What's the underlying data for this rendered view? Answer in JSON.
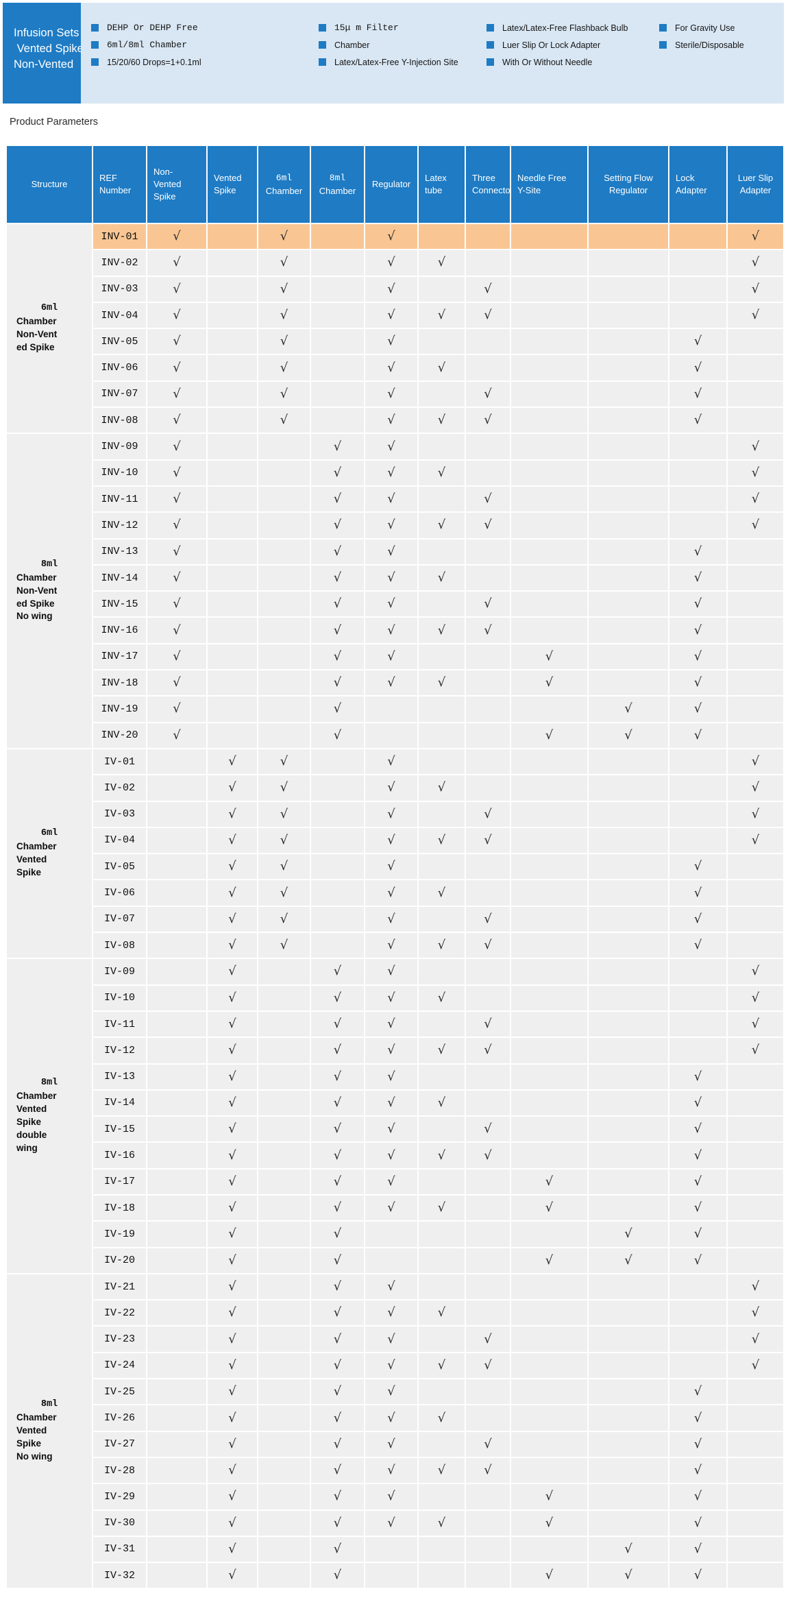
{
  "header": {
    "title_lines": [
      "Infusion Sets",
      " Vented Spike/",
      "Non-Vented"
    ],
    "bullet_columns": [
      {
        "items": [
          {
            "text": "DEHP Or DEHP Free",
            "mono": true
          },
          {
            "text": "6ml/8ml Chamber",
            "mono": true
          },
          {
            "text": "15/20/60 Drops=1+0.1ml",
            "mono": false
          }
        ]
      },
      {
        "items": [
          {
            "text": "15μ m Filter",
            "mono": true
          },
          {
            "text": "Chamber",
            "mono": false
          },
          {
            "text": "Latex/Latex-Free Y-Injection Site",
            "mono": false
          }
        ]
      },
      {
        "items": [
          {
            "text": "Latex/Latex-Free Flashback Bulb",
            "mono": false
          },
          {
            "text": "Luer Slip Or Lock Adapter",
            "mono": false
          },
          {
            "text": "With Or Without Needle",
            "mono": false
          }
        ]
      },
      {
        "items": [
          {
            "text": "For Gravity Use",
            "mono": false
          },
          {
            "text": "Sterile/Disposable",
            "mono": false
          }
        ]
      }
    ]
  },
  "section_title": "Product Parameters",
  "colors": {
    "primary_blue": "#1E7BC4",
    "panel_blue": "#D9E7F4",
    "row_gray": "#F0EFEF",
    "highlight_orange": "#F9C693"
  },
  "table": {
    "check_glyph": "√",
    "columns": [
      {
        "key": "structure",
        "label": "Structure"
      },
      {
        "key": "ref",
        "label": "REF\nNumber"
      },
      {
        "key": "nvs",
        "label": "Non-\nVented\nSpike"
      },
      {
        "key": "vs",
        "label": "Vented\nSpike"
      },
      {
        "key": "c6",
        "line1": "6ml",
        "line2": "Chamber"
      },
      {
        "key": "c8",
        "line1": "8ml",
        "line2": "Chamber"
      },
      {
        "key": "reg",
        "label": "Regulator"
      },
      {
        "key": "latex",
        "label": "Latex\ntube"
      },
      {
        "key": "three",
        "label": "Three\nConnecto"
      },
      {
        "key": "needle",
        "label": "Needle Free\nY-Site"
      },
      {
        "key": "setflow",
        "label": "Setting Flow\nRegulator"
      },
      {
        "key": "lock",
        "label": "Lock\nAdapter"
      },
      {
        "key": "luer",
        "label": "Luer  Slip\nAdapter"
      }
    ],
    "groups": [
      {
        "label_lines": [
          "6ml",
          "Chamber",
          "Non-Vent",
          "ed Spike"
        ],
        "rows": [
          {
            "ref": "INV-01",
            "highlight": true,
            "checks": [
              "nvs",
              "c6",
              "reg",
              "luer"
            ]
          },
          {
            "ref": "INV-02",
            "highlight": false,
            "checks": [
              "nvs",
              "c6",
              "reg",
              "latex",
              "luer"
            ]
          },
          {
            "ref": "INV-03",
            "highlight": false,
            "checks": [
              "nvs",
              "c6",
              "reg",
              "three",
              "luer"
            ]
          },
          {
            "ref": "INV-04",
            "highlight": false,
            "checks": [
              "nvs",
              "c6",
              "reg",
              "latex",
              "three",
              "luer"
            ]
          },
          {
            "ref": "INV-05",
            "highlight": false,
            "checks": [
              "nvs",
              "c6",
              "reg",
              "lock"
            ]
          },
          {
            "ref": "INV-06",
            "highlight": false,
            "checks": [
              "nvs",
              "c6",
              "reg",
              "latex",
              "lock"
            ]
          },
          {
            "ref": "INV-07",
            "highlight": false,
            "checks": [
              "nvs",
              "c6",
              "reg",
              "three",
              "lock"
            ]
          },
          {
            "ref": "INV-08",
            "highlight": false,
            "checks": [
              "nvs",
              "c6",
              "reg",
              "latex",
              "three",
              "lock"
            ]
          }
        ]
      },
      {
        "label_lines": [
          "8ml",
          "Chamber",
          "Non-Vent",
          "ed Spike",
          "No wing"
        ],
        "rows": [
          {
            "ref": "INV-09",
            "highlight": false,
            "checks": [
              "nvs",
              "c8",
              "reg",
              "luer"
            ]
          },
          {
            "ref": "INV-10",
            "highlight": false,
            "checks": [
              "nvs",
              "c8",
              "reg",
              "latex",
              "luer"
            ]
          },
          {
            "ref": "INV-11",
            "highlight": false,
            "checks": [
              "nvs",
              "c8",
              "reg",
              "three",
              "luer"
            ]
          },
          {
            "ref": "INV-12",
            "highlight": false,
            "checks": [
              "nvs",
              "c8",
              "reg",
              "latex",
              "three",
              "luer"
            ]
          },
          {
            "ref": "INV-13",
            "highlight": false,
            "checks": [
              "nvs",
              "c8",
              "reg",
              "lock"
            ]
          },
          {
            "ref": "INV-14",
            "highlight": false,
            "checks": [
              "nvs",
              "c8",
              "reg",
              "latex",
              "lock"
            ]
          },
          {
            "ref": "INV-15",
            "highlight": false,
            "checks": [
              "nvs",
              "c8",
              "reg",
              "three",
              "lock"
            ]
          },
          {
            "ref": "INV-16",
            "highlight": false,
            "checks": [
              "nvs",
              "c8",
              "reg",
              "latex",
              "three",
              "lock"
            ]
          },
          {
            "ref": "INV-17",
            "highlight": false,
            "checks": [
              "nvs",
              "c8",
              "reg",
              "needle",
              "lock"
            ]
          },
          {
            "ref": "INV-18",
            "highlight": false,
            "checks": [
              "nvs",
              "c8",
              "reg",
              "latex",
              "needle",
              "lock"
            ]
          },
          {
            "ref": "INV-19",
            "highlight": false,
            "checks": [
              "nvs",
              "c8",
              "setflow",
              "lock"
            ]
          },
          {
            "ref": "INV-20",
            "highlight": false,
            "checks": [
              "nvs",
              "c8",
              "needle",
              "setflow",
              "lock"
            ]
          }
        ]
      },
      {
        "label_lines": [
          "6ml",
          "Chamber",
          "Vented",
          "Spike"
        ],
        "rows": [
          {
            "ref": "IV-01",
            "highlight": false,
            "checks": [
              "vs",
              "c6",
              "reg",
              "luer"
            ]
          },
          {
            "ref": "IV-02",
            "highlight": false,
            "checks": [
              "vs",
              "c6",
              "reg",
              "latex",
              "luer"
            ]
          },
          {
            "ref": "IV-03",
            "highlight": false,
            "checks": [
              "vs",
              "c6",
              "reg",
              "three",
              "luer"
            ]
          },
          {
            "ref": "IV-04",
            "highlight": false,
            "checks": [
              "vs",
              "c6",
              "reg",
              "latex",
              "three",
              "luer"
            ]
          },
          {
            "ref": "IV-05",
            "highlight": false,
            "checks": [
              "vs",
              "c6",
              "reg",
              "lock"
            ]
          },
          {
            "ref": "IV-06",
            "highlight": false,
            "checks": [
              "vs",
              "c6",
              "reg",
              "latex",
              "lock"
            ]
          },
          {
            "ref": "IV-07",
            "highlight": false,
            "checks": [
              "vs",
              "c6",
              "reg",
              "three",
              "lock"
            ]
          },
          {
            "ref": "IV-08",
            "highlight": false,
            "checks": [
              "vs",
              "c6",
              "reg",
              "latex",
              "three",
              "lock"
            ]
          }
        ]
      },
      {
        "label_lines": [
          "8ml",
          "Chamber",
          "Vented",
          "Spike",
          "double",
          "wing"
        ],
        "rows": [
          {
            "ref": "IV-09",
            "highlight": false,
            "checks": [
              "vs",
              "c8",
              "reg",
              "luer"
            ]
          },
          {
            "ref": "IV-10",
            "highlight": false,
            "checks": [
              "vs",
              "c8",
              "reg",
              "latex",
              "luer"
            ]
          },
          {
            "ref": "IV-11",
            "highlight": false,
            "checks": [
              "vs",
              "c8",
              "reg",
              "three",
              "luer"
            ]
          },
          {
            "ref": "IV-12",
            "highlight": false,
            "checks": [
              "vs",
              "c8",
              "reg",
              "latex",
              "three",
              "luer"
            ]
          },
          {
            "ref": "IV-13",
            "highlight": false,
            "checks": [
              "vs",
              "c8",
              "reg",
              "lock"
            ]
          },
          {
            "ref": "IV-14",
            "highlight": false,
            "checks": [
              "vs",
              "c8",
              "reg",
              "latex",
              "lock"
            ]
          },
          {
            "ref": "IV-15",
            "highlight": false,
            "checks": [
              "vs",
              "c8",
              "reg",
              "three",
              "lock"
            ]
          },
          {
            "ref": "IV-16",
            "highlight": false,
            "checks": [
              "vs",
              "c8",
              "reg",
              "latex",
              "three",
              "lock"
            ]
          },
          {
            "ref": "IV-17",
            "highlight": false,
            "checks": [
              "vs",
              "c8",
              "reg",
              "needle",
              "lock"
            ]
          },
          {
            "ref": "IV-18",
            "highlight": false,
            "checks": [
              "vs",
              "c8",
              "reg",
              "latex",
              "needle",
              "lock"
            ]
          },
          {
            "ref": "IV-19",
            "highlight": false,
            "checks": [
              "vs",
              "c8",
              "setflow",
              "lock"
            ]
          },
          {
            "ref": "IV-20",
            "highlight": false,
            "checks": [
              "vs",
              "c8",
              "needle",
              "setflow",
              "lock"
            ]
          }
        ]
      },
      {
        "label_lines": [
          "8ml",
          "Chamber",
          "Vented",
          "Spike",
          "No wing"
        ],
        "rows": [
          {
            "ref": "IV-21",
            "highlight": false,
            "checks": [
              "vs",
              "c8",
              "reg",
              "luer"
            ]
          },
          {
            "ref": "IV-22",
            "highlight": false,
            "checks": [
              "vs",
              "c8",
              "reg",
              "latex",
              "luer"
            ]
          },
          {
            "ref": "IV-23",
            "highlight": false,
            "checks": [
              "vs",
              "c8",
              "reg",
              "three",
              "luer"
            ]
          },
          {
            "ref": "IV-24",
            "highlight": false,
            "checks": [
              "vs",
              "c8",
              "reg",
              "latex",
              "three",
              "luer"
            ]
          },
          {
            "ref": "IV-25",
            "highlight": false,
            "checks": [
              "vs",
              "c8",
              "reg",
              "lock"
            ]
          },
          {
            "ref": "IV-26",
            "highlight": false,
            "checks": [
              "vs",
              "c8",
              "reg",
              "latex",
              "lock"
            ]
          },
          {
            "ref": "IV-27",
            "highlight": false,
            "checks": [
              "vs",
              "c8",
              "reg",
              "three",
              "lock"
            ]
          },
          {
            "ref": "IV-28",
            "highlight": false,
            "checks": [
              "vs",
              "c8",
              "reg",
              "latex",
              "three",
              "lock"
            ]
          },
          {
            "ref": "IV-29",
            "highlight": false,
            "checks": [
              "vs",
              "c8",
              "reg",
              "needle",
              "lock"
            ]
          },
          {
            "ref": "IV-30",
            "highlight": false,
            "checks": [
              "vs",
              "c8",
              "reg",
              "latex",
              "needle",
              "lock"
            ]
          },
          {
            "ref": "IV-31",
            "highlight": false,
            "checks": [
              "vs",
              "c8",
              "setflow",
              "lock"
            ]
          },
          {
            "ref": "IV-32",
            "highlight": false,
            "checks": [
              "vs",
              "c8",
              "needle",
              "setflow",
              "lock"
            ]
          }
        ]
      }
    ]
  }
}
